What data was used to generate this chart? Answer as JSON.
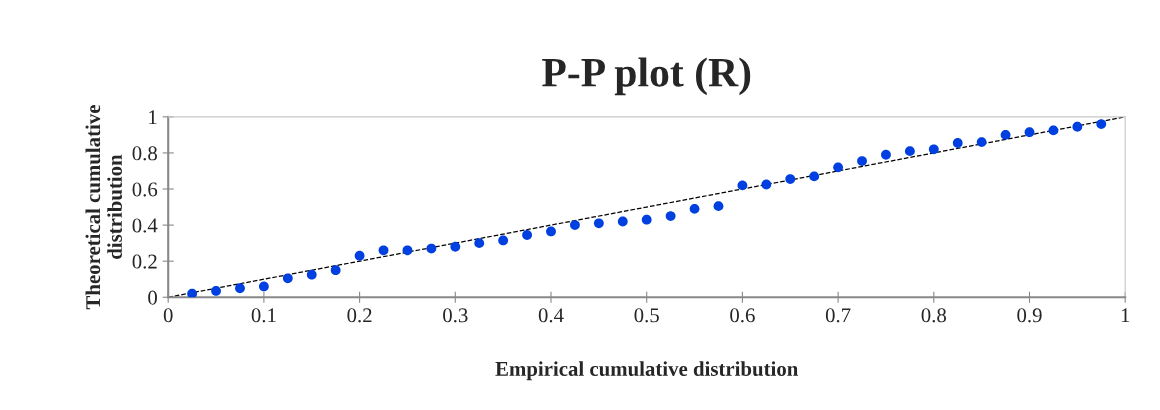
{
  "chart_data": {
    "type": "scatter",
    "title": "P-P plot (R)",
    "xlabel": "Empirical cumulative distribution",
    "ylabel": "Theoretical cumulative\ndistribution",
    "xlim": [
      0,
      1
    ],
    "ylim": [
      0,
      1
    ],
    "xticks": [
      0,
      0.1,
      0.2,
      0.3,
      0.4,
      0.5,
      0.6,
      0.7,
      0.8,
      0.9,
      1
    ],
    "yticks": [
      0,
      0.2,
      0.4,
      0.6,
      0.8,
      1
    ],
    "grid": false,
    "legend": false,
    "marker": "circle",
    "series": [
      {
        "color": "#0040e0",
        "x": [
          0.025,
          0.05,
          0.075,
          0.1,
          0.125,
          0.15,
          0.175,
          0.2,
          0.225,
          0.25,
          0.275,
          0.3,
          0.325,
          0.35,
          0.375,
          0.4,
          0.425,
          0.45,
          0.475,
          0.5,
          0.525,
          0.55,
          0.575,
          0.6,
          0.625,
          0.65,
          0.675,
          0.7,
          0.725,
          0.75,
          0.775,
          0.8,
          0.825,
          0.85,
          0.875,
          0.9,
          0.925,
          0.95,
          0.975
        ],
        "values": [
          0.02,
          0.035,
          0.05,
          0.06,
          0.105,
          0.125,
          0.15,
          0.23,
          0.26,
          0.26,
          0.27,
          0.28,
          0.3,
          0.315,
          0.345,
          0.365,
          0.4,
          0.41,
          0.42,
          0.43,
          0.45,
          0.49,
          0.505,
          0.62,
          0.625,
          0.655,
          0.67,
          0.72,
          0.755,
          0.79,
          0.81,
          0.82,
          0.855,
          0.86,
          0.9,
          0.915,
          0.925,
          0.945,
          0.96
        ]
      },
      {
        "type": "line",
        "color": "#000000",
        "line_style": "dashed",
        "marker": "none",
        "x": [
          0,
          1
        ],
        "values": [
          0,
          1
        ]
      }
    ]
  }
}
